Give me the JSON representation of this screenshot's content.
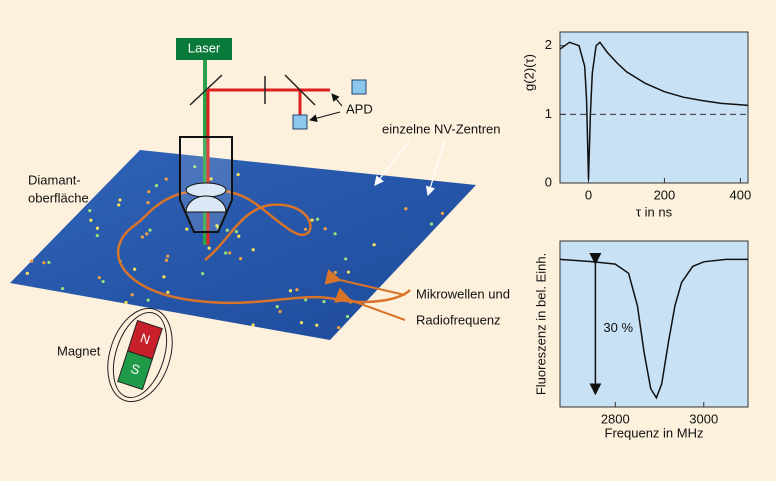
{
  "diagram": {
    "laser": "Laser",
    "apd": "APD",
    "nv_centers": "einzelne NV-Zentren",
    "surface": [
      "Diamant-",
      "oberfläche"
    ],
    "microwave": [
      "Mikrowellen und",
      "Radiofrequenz"
    ],
    "magnet": "Magnet",
    "north": "N",
    "south": "S"
  },
  "chart_data": [
    {
      "type": "line",
      "ylabel": "g(2)(τ)",
      "xlabel": "τ in ns",
      "x": [
        -75,
        -50,
        -25,
        -10,
        -5,
        0,
        5,
        10,
        20,
        30,
        50,
        75,
        100,
        150,
        200,
        250,
        300,
        350,
        400,
        420
      ],
      "values": [
        1.95,
        2.05,
        2.0,
        1.7,
        1.2,
        0.05,
        1.0,
        1.6,
        2.0,
        2.05,
        1.9,
        1.75,
        1.62,
        1.45,
        1.33,
        1.25,
        1.2,
        1.16,
        1.14,
        1.13
      ],
      "color": "#111111",
      "reference_line": 1,
      "xlim": [
        -75,
        420
      ],
      "ylim": [
        0,
        2.2
      ],
      "xticks": [
        0,
        200,
        400
      ],
      "yticks": [
        0,
        1,
        2
      ]
    },
    {
      "type": "line",
      "ylabel": "Fluoreszenz in bel. Einh.",
      "xlabel": "Frequenz in MHz",
      "x": [
        2675,
        2750,
        2800,
        2830,
        2850,
        2865,
        2880,
        2893,
        2905,
        2920,
        2935,
        2950,
        2975,
        3000,
        3050,
        3100
      ],
      "values": [
        1.0,
        0.995,
        0.99,
        0.97,
        0.9,
        0.8,
        0.72,
        0.7,
        0.73,
        0.82,
        0.9,
        0.95,
        0.985,
        0.995,
        1.0,
        1.0
      ],
      "color": "#111111",
      "dip_arrow": {
        "x": 2755,
        "from": 1.0,
        "to": 0.7,
        "label": "30 %"
      },
      "xlim": [
        2675,
        3100
      ],
      "ylim": [
        0.68,
        1.04
      ],
      "xticks": [
        2800,
        3000
      ]
    }
  ]
}
